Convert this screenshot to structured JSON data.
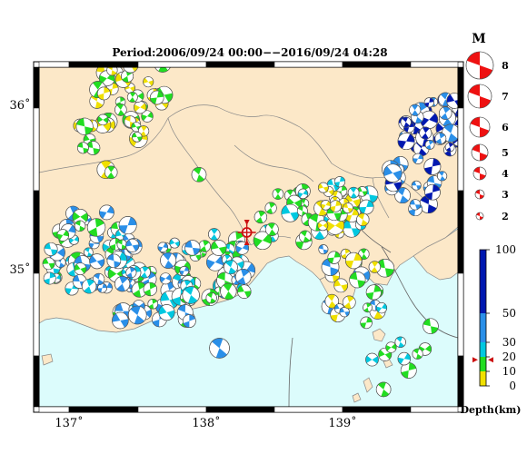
{
  "title": "Period:2006/09/24 00:00−−2016/09/24 04:28",
  "lat_labels": [
    {
      "text": "36˚",
      "value": 36
    },
    {
      "text": "35˚",
      "value": 35
    }
  ],
  "lon_labels": [
    {
      "text": "137˚",
      "value": 137
    },
    {
      "text": "138˚",
      "value": 138
    },
    {
      "text": "139˚",
      "value": 139
    }
  ],
  "magnitude_legend": {
    "title": "M",
    "items": [
      "8",
      "7",
      "6",
      "5",
      "4",
      "3",
      "2"
    ]
  },
  "depth_legend": {
    "title": "Depth(km)",
    "ticks": [
      "100",
      "50",
      "30",
      "20",
      "10",
      "0"
    ],
    "marker_value": 18,
    "bands": [
      {
        "from": 0,
        "to": 10,
        "color": "#f0e000"
      },
      {
        "from": 10,
        "to": 20,
        "color": "#22dd22"
      },
      {
        "from": 20,
        "to": 30,
        "color": "#00c8e0"
      },
      {
        "from": 30,
        "to": 50,
        "color": "#2a8fe8"
      },
      {
        "from": 50,
        "to": 100,
        "color": "#0018b0"
      }
    ]
  },
  "colors": {
    "land": "#fce8c8",
    "sea": "#dcfcfc",
    "focal_red": "#ee1111",
    "frame": "#000000"
  },
  "epicenter_marker": {
    "lon": 138.3,
    "lat": 35.25,
    "color": "#cc1111"
  }
}
